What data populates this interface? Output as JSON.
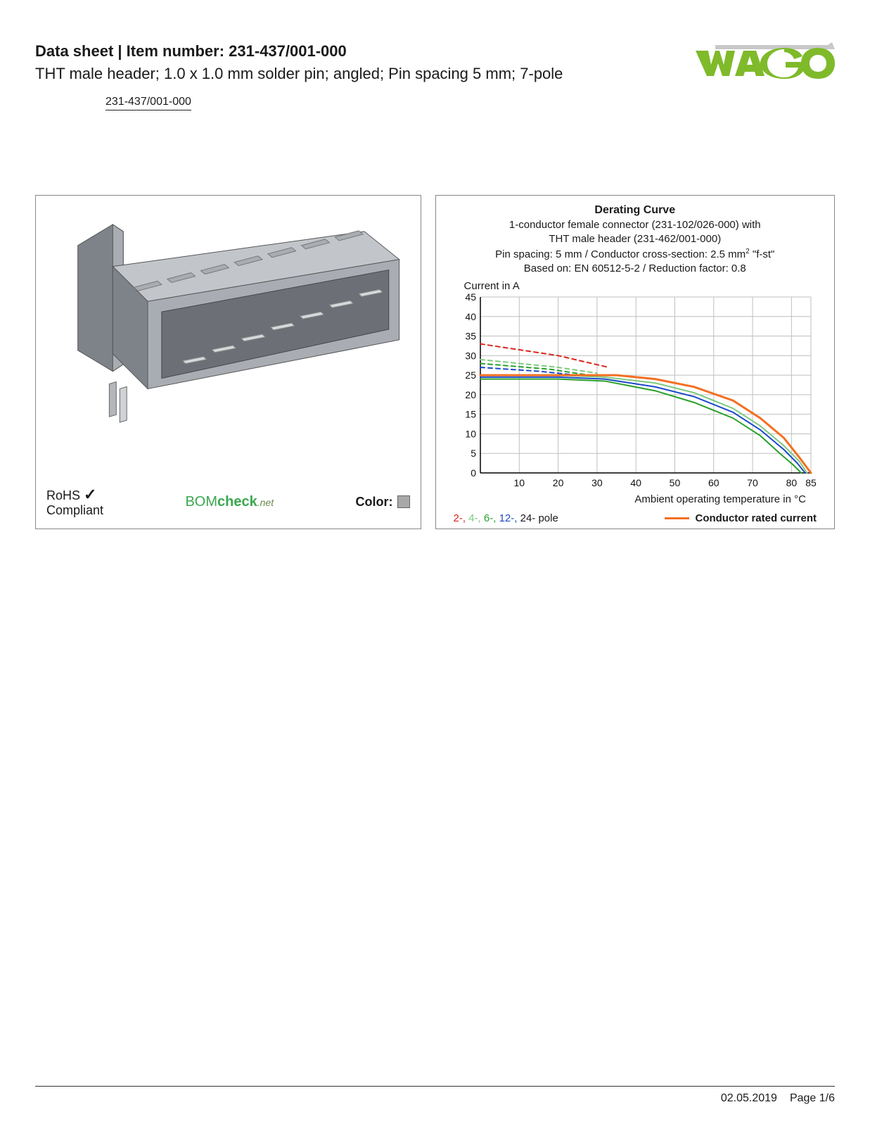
{
  "header": {
    "title_prefix": "Data sheet",
    "title_separator": "  |  ",
    "title_item_label": "Item number:",
    "item_number": "231-437/001-000",
    "subtitle": "THT male header; 1.0 x 1.0 mm solder pin; angled; Pin spacing 5 mm; 7-pole",
    "link_text": "231-437/001-000"
  },
  "logo": {
    "text": "WAGO",
    "fill": "#7fba2a",
    "accent": "#c8c8c8"
  },
  "product_panel": {
    "rohs_line1": "RoHS",
    "rohs_line2": "Compliant",
    "bomcheck_1": "BOM",
    "bomcheck_2": "check",
    "bomcheck_3": ".net",
    "color_label": "Color:",
    "swatch_color": "#a8a8a8",
    "body_color": "#a9adb3",
    "body_light": "#c2c6cb",
    "body_dark": "#7e838a"
  },
  "chart": {
    "title": "Derating Curve",
    "sub1": "1-conductor female connector (231-102/026-000) with",
    "sub2": "THT male header (231-462/001-000)",
    "sub3_pre": "Pin spacing: 5 mm / Conductor cross-section: 2.5 mm",
    "sub3_post": " \"f-st\"",
    "sub4": "Based on: EN 60512-5-2 / Reduction factor: 0.8",
    "ylabel": "Current in A",
    "xlabel": "Ambient operating temperature in °C",
    "ylim": [
      0,
      45
    ],
    "ytick_step": 5,
    "xlim": [
      0,
      85
    ],
    "xticks": [
      10,
      20,
      30,
      40,
      50,
      60,
      70,
      80,
      85
    ],
    "grid_color": "#bfbfbf",
    "axis_color": "#000000",
    "background": "#ffffff",
    "series": [
      {
        "name": "2-pole-dash",
        "color": "#d9261c",
        "dash": true,
        "pts": [
          [
            0,
            33
          ],
          [
            20,
            30
          ],
          [
            33,
            27
          ]
        ]
      },
      {
        "name": "4-pole-dash",
        "color": "#7ec97e",
        "dash": true,
        "pts": [
          [
            0,
            29
          ],
          [
            20,
            27
          ],
          [
            30,
            25.5
          ]
        ]
      },
      {
        "name": "6-pole-dash",
        "color": "#2aa02a",
        "dash": true,
        "pts": [
          [
            0,
            28
          ],
          [
            18,
            26.5
          ],
          [
            28,
            25
          ]
        ]
      },
      {
        "name": "12-pole-dash",
        "color": "#1c49c9",
        "dash": true,
        "pts": [
          [
            0,
            27
          ],
          [
            15,
            26
          ],
          [
            25,
            25
          ]
        ]
      },
      {
        "name": "2-pole",
        "color": "#d9261c",
        "dash": false,
        "pts": [
          [
            0,
            25
          ],
          [
            20,
            25
          ],
          [
            35,
            25
          ],
          [
            45,
            24
          ],
          [
            55,
            22
          ],
          [
            65,
            18.5
          ],
          [
            72,
            14
          ],
          [
            78,
            9
          ],
          [
            82,
            4
          ],
          [
            85,
            0
          ]
        ]
      },
      {
        "name": "4-pole",
        "color": "#7ec97e",
        "dash": false,
        "pts": [
          [
            0,
            25
          ],
          [
            20,
            25
          ],
          [
            32,
            24.5
          ],
          [
            45,
            23
          ],
          [
            55,
            20.5
          ],
          [
            65,
            16.5
          ],
          [
            72,
            12
          ],
          [
            78,
            7
          ],
          [
            82,
            3
          ],
          [
            84,
            0
          ]
        ]
      },
      {
        "name": "12-pole",
        "color": "#1c49c9",
        "dash": false,
        "pts": [
          [
            0,
            24.5
          ],
          [
            20,
            24.5
          ],
          [
            32,
            24
          ],
          [
            45,
            22
          ],
          [
            55,
            19.5
          ],
          [
            65,
            15.5
          ],
          [
            72,
            11
          ],
          [
            78,
            6
          ],
          [
            81.5,
            2.5
          ],
          [
            83.5,
            0
          ]
        ]
      },
      {
        "name": "6-pole",
        "color": "#2aa02a",
        "dash": false,
        "pts": [
          [
            0,
            24
          ],
          [
            20,
            24
          ],
          [
            32,
            23.5
          ],
          [
            45,
            21
          ],
          [
            55,
            18
          ],
          [
            65,
            14
          ],
          [
            72,
            9.5
          ],
          [
            77,
            5
          ],
          [
            80.5,
            2
          ],
          [
            82.5,
            0
          ]
        ]
      },
      {
        "name": "conductor",
        "color": "#f36f21",
        "dash": false,
        "width": 3,
        "pts": [
          [
            0,
            25
          ],
          [
            20,
            25
          ],
          [
            35,
            25
          ],
          [
            45,
            24
          ],
          [
            55,
            22
          ],
          [
            65,
            18.5
          ],
          [
            72,
            14
          ],
          [
            78,
            9
          ],
          [
            82,
            4
          ],
          [
            85,
            0
          ]
        ]
      }
    ],
    "legend": {
      "poles": [
        {
          "label": "2-,",
          "color": "#d9261c"
        },
        {
          "label": "4-,",
          "color": "#7ec97e"
        },
        {
          "label": "6-,",
          "color": "#2aa02a"
        },
        {
          "label": "12-,",
          "color": "#1c49c9"
        },
        {
          "label": "24- pole",
          "color": "#1a1a1a"
        }
      ],
      "conductor_label": "Conductor rated current",
      "conductor_color": "#f36f21"
    }
  },
  "footer": {
    "date": "02.05.2019",
    "page": "Page 1/6"
  }
}
